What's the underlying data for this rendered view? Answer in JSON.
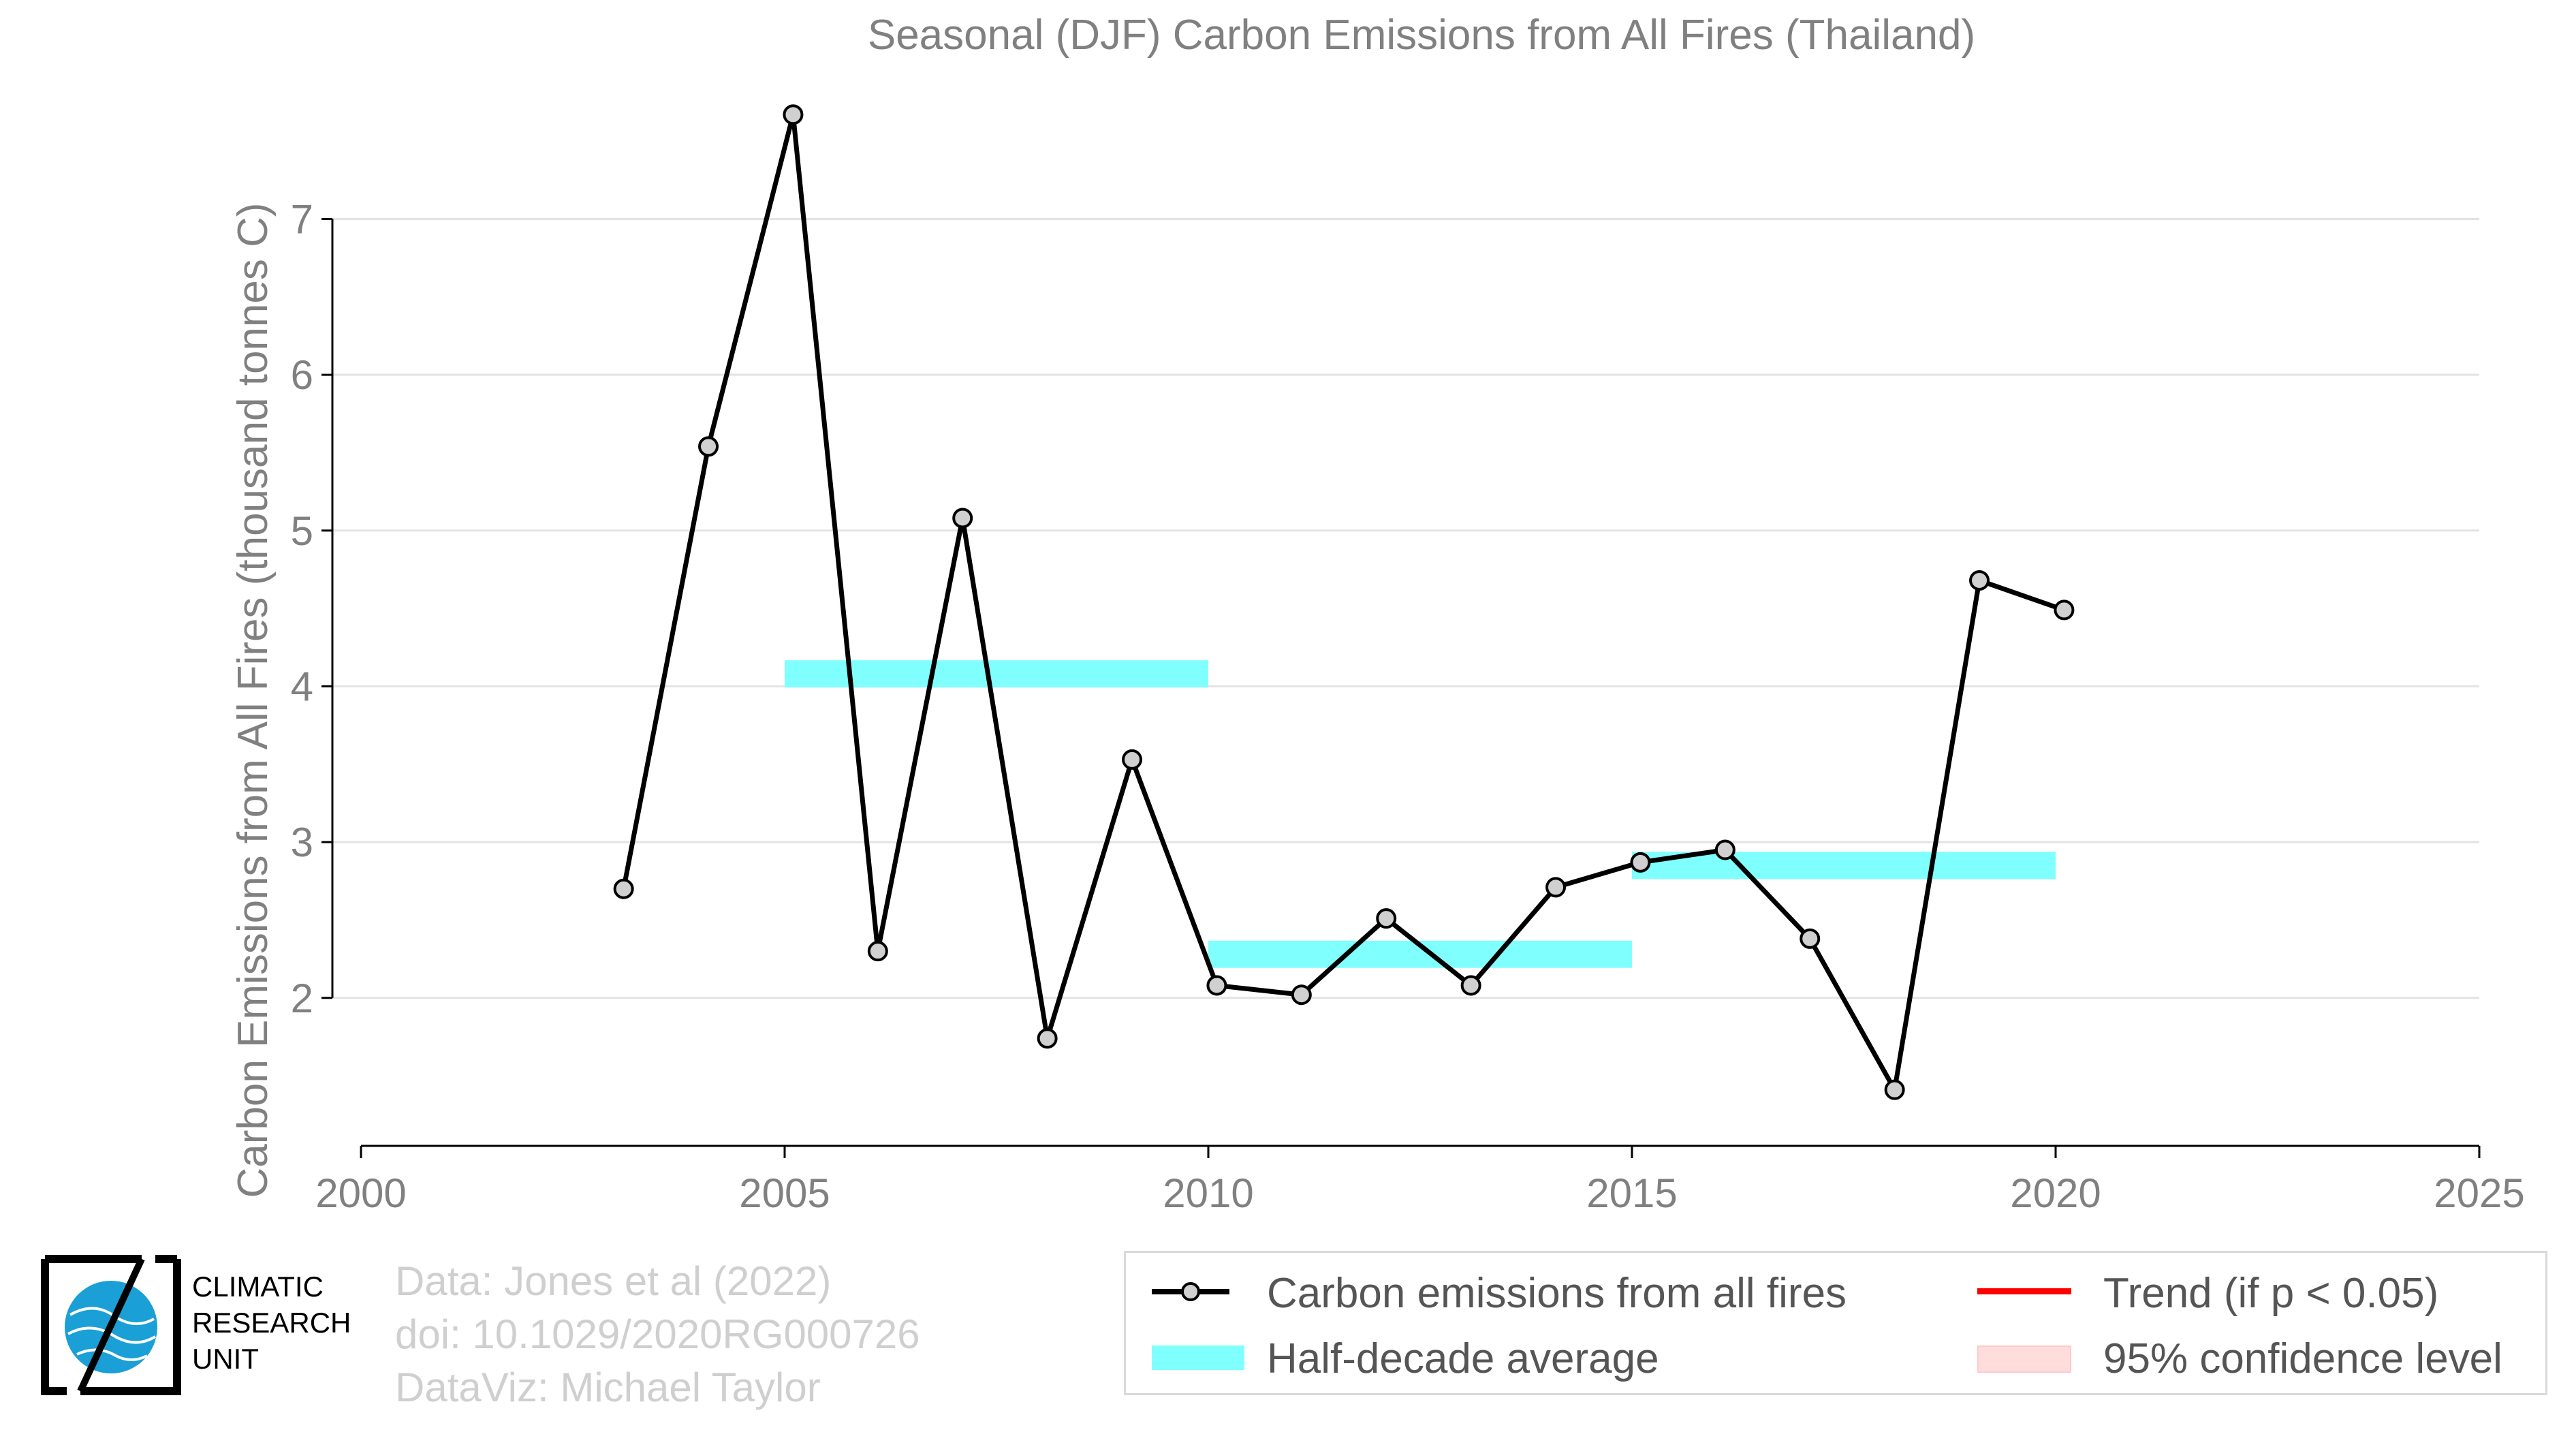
{
  "chart_data": {
    "type": "line",
    "title": "Seasonal (DJF) Carbon Emissions from All Fires (Thailand)",
    "xlabel": "",
    "ylabel": "Carbon Emissions from All Fires (thousand tonnes C)",
    "xlim": [
      2000,
      2025
    ],
    "ylim": [
      1.05,
      7.75
    ],
    "xticks": [
      "2000",
      "2005",
      "2010",
      "2015",
      "2020",
      "2025"
    ],
    "yticks": [
      "2",
      "3",
      "4",
      "5",
      "6",
      "7"
    ],
    "grid": true,
    "series": [
      {
        "name": "Carbon emissions from all fires",
        "color": "#000000",
        "marker_color": "#d0d0d0",
        "x": [
          2003.1,
          2004.1,
          2005.1,
          2006.1,
          2007.1,
          2008.1,
          2009.1,
          2010.1,
          2011.1,
          2012.1,
          2013.1,
          2014.1,
          2015.1,
          2016.1,
          2017.1,
          2018.1,
          2019.1,
          2020.1
        ],
        "y": [
          2.7,
          5.54,
          7.67,
          2.3,
          5.08,
          1.74,
          3.53,
          2.08,
          2.02,
          2.51,
          2.08,
          2.71,
          2.87,
          2.95,
          2.38,
          1.41,
          4.68,
          4.49
        ]
      }
    ],
    "half_decade_average": {
      "name": "Half-decade average",
      "color": "#80ffff",
      "segments": [
        {
          "x0": 2005,
          "x1": 2010,
          "y": 4.08
        },
        {
          "x0": 2010,
          "x1": 2015,
          "y": 2.28
        },
        {
          "x0": 2015,
          "x1": 2020,
          "y": 2.85
        }
      ]
    },
    "trend": {
      "name": "Trend (if p < 0.05)",
      "color": "#ff0000",
      "shown": false
    },
    "confidence": {
      "name": "95% confidence level",
      "color": "#ffdddd",
      "shown": false
    },
    "legend_position": "bottom-right"
  },
  "footer": {
    "data_line": "Data: Jones et al (2022)",
    "doi_line": "doi: 10.1029/2020RG000726",
    "viz_line": "DataViz: Michael Taylor"
  },
  "logo": {
    "line1": "CLIMATIC",
    "line2": "RESEARCH",
    "line3": "UNIT",
    "icon": "globe-icon",
    "globe_color": "#1a9fd6"
  },
  "legend": {
    "carbon": "Carbon emissions from all fires",
    "half": "Half-decade average",
    "trend": "Trend (if p < 0.05)",
    "ci": "95% confidence level"
  }
}
